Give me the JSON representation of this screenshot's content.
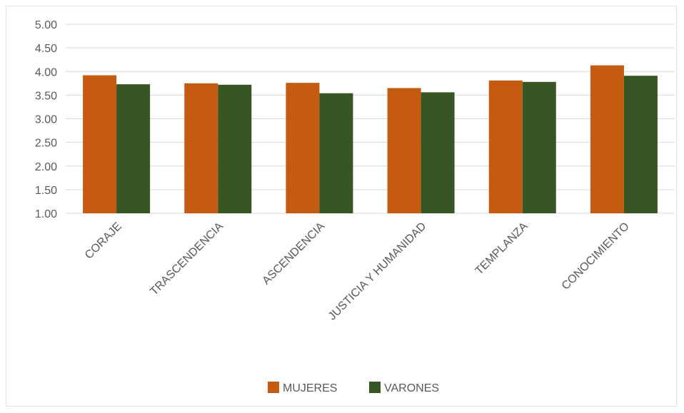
{
  "chart_data": {
    "type": "bar",
    "title": "",
    "xlabel": "",
    "ylabel": "",
    "ylim": [
      1.0,
      5.0
    ],
    "ytick_step": 0.5,
    "yticks": [
      "1.00",
      "1.50",
      "2.00",
      "2.50",
      "3.00",
      "3.50",
      "4.00",
      "4.50",
      "5.00"
    ],
    "grid": true,
    "legend_position": "bottom",
    "categories": [
      "CORAJE",
      "TRASCENDENCIA",
      "ASCENDENCIA",
      "JUSTICIA Y HUMANIDAD",
      "TEMPLANZA",
      "CONOCIMIENTO"
    ],
    "series": [
      {
        "name": "MUJERES",
        "color": "#c55a11",
        "values": [
          3.92,
          3.75,
          3.76,
          3.65,
          3.81,
          4.13
        ]
      },
      {
        "name": "VARONES",
        "color": "#375623",
        "values": [
          3.73,
          3.72,
          3.54,
          3.56,
          3.78,
          3.91
        ]
      }
    ]
  }
}
